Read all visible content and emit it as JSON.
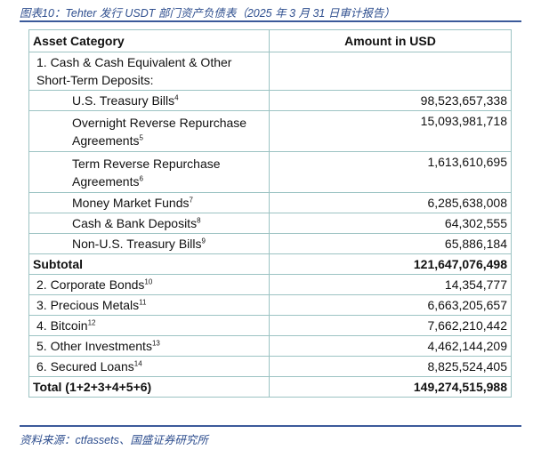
{
  "caption": "图表10：Tehter 发行 USDT 部门资产负债表（2025 年 3 月 31 日审计报告）",
  "source": "资料来源：ctfassets、国盛证券研究所",
  "table": {
    "headers": [
      "Asset Category",
      "Amount in USD"
    ],
    "section1_label": "1.  Cash & Cash Equivalent & Other Short-Term Deposits:",
    "section1_rows": [
      {
        "label": "U.S. Treasury Bills",
        "note": "4",
        "amount": "98,523,657,338"
      },
      {
        "label": "Overnight Reverse Repurchase Agreements",
        "note": "5",
        "amount": "15,093,981,718"
      },
      {
        "label": "Term Reverse Repurchase Agreements",
        "note": "6",
        "amount": "1,613,610,695"
      },
      {
        "label": "Money Market Funds",
        "note": "7",
        "amount": "6,285,638,008"
      },
      {
        "label": "Cash & Bank Deposits",
        "note": "8",
        "amount": "64,302,555"
      },
      {
        "label": "Non-U.S. Treasury Bills",
        "note": "9",
        "amount": "65,886,184"
      }
    ],
    "subtotal": {
      "label": "Subtotal",
      "amount": "121,647,076,498"
    },
    "other_rows": [
      {
        "label": "2.  Corporate Bonds",
        "note": "10",
        "amount": "14,354,777"
      },
      {
        "label": "3.  Precious Metals",
        "note": "11",
        "amount": "6,663,205,657"
      },
      {
        "label": "4.  Bitcoin",
        "note": "12",
        "amount": "7,662,210,442"
      },
      {
        "label": "5.  Other Investments",
        "note": "13",
        "amount": "4,462,144,209"
      },
      {
        "label": "6.  Secured Loans",
        "note": "14",
        "amount": "8,825,524,405"
      }
    ],
    "total": {
      "label": "Total (1+2+3+4+5+6)",
      "amount": "149,274,515,988"
    }
  }
}
